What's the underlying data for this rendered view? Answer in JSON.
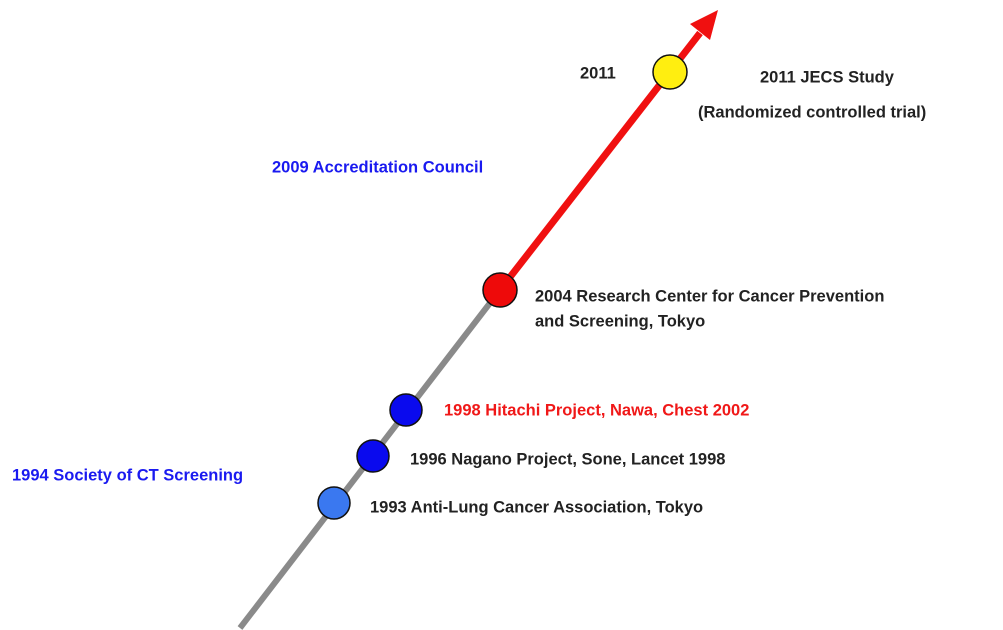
{
  "timeline": {
    "year_marker": "2011",
    "events": [
      {
        "lines": [
          "2011 JECS Study",
          "(Randomized controlled trial)"
        ]
      },
      {
        "lines": [
          "2009 Accreditation Council"
        ]
      },
      {
        "lines": [
          "2004 Research Center for Cancer Prevention",
          "and Screening, Tokyo"
        ]
      },
      {
        "lines": [
          "1998 Hitachi Project, Nawa, Chest 2002"
        ]
      },
      {
        "lines": [
          "1996 Nagano Project, Sone, Lancet 1998"
        ]
      },
      {
        "lines": [
          "1994 Society of CT Screening"
        ]
      },
      {
        "lines": [
          "1993 Anti-Lung Cancer Association, Tokyo"
        ]
      }
    ]
  }
}
